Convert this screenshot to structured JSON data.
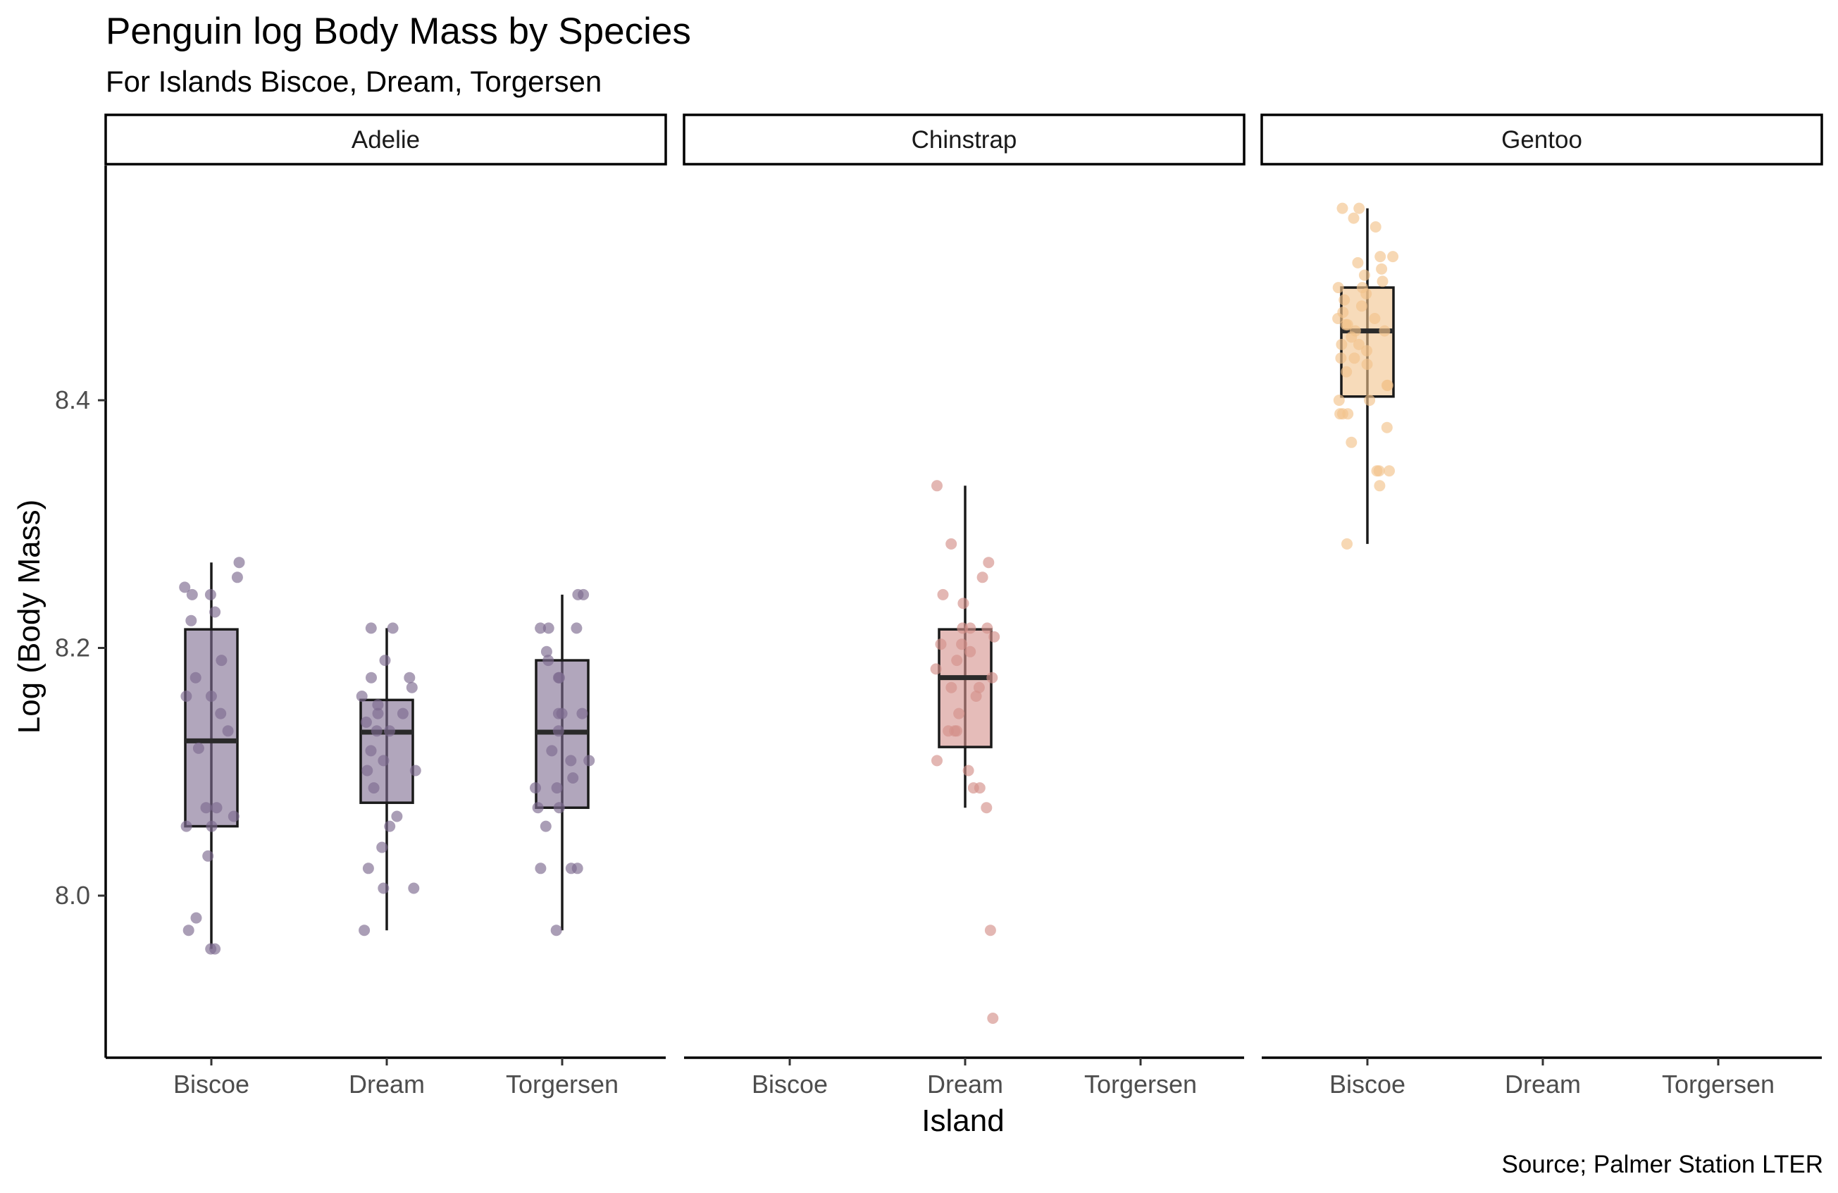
{
  "chart_data": {
    "type": "boxplot",
    "title": "Penguin log Body Mass by Species",
    "subtitle": "For Islands Biscoe, Dream, Torgersen",
    "xlabel": "Island",
    "ylabel": "Log (Body Mass)",
    "caption": "Source; Palmer Station LTER",
    "categories": [
      "Biscoe",
      "Dream",
      "Torgersen"
    ],
    "y_ticks": [
      8.0,
      8.2,
      8.4
    ],
    "y_tick_labels": [
      "8.0",
      "8.2",
      "8.4"
    ],
    "ylim": [
      7.87,
      8.59
    ],
    "grid": false,
    "legend": "none",
    "facets": [
      {
        "name": "Adelie",
        "color": "#7d6a8f",
        "boxes": [
          {
            "island": "Biscoe",
            "min": 7.957,
            "q1": 8.056,
            "median": 8.125,
            "q3": 8.215,
            "max": 8.269,
            "points": [
              7.957,
              7.957,
              7.972,
              7.982,
              8.032,
              8.056,
              8.056,
              8.064,
              8.071,
              8.071,
              8.119,
              8.133,
              8.147,
              8.161,
              8.161,
              8.176,
              8.19,
              8.222,
              8.229,
              8.243,
              8.243,
              8.249,
              8.257,
              8.269
            ]
          },
          {
            "island": "Dream",
            "min": 7.972,
            "q1": 8.075,
            "median": 8.132,
            "q3": 8.158,
            "max": 8.216,
            "points": [
              7.972,
              8.006,
              8.006,
              8.022,
              8.039,
              8.056,
              8.064,
              8.087,
              8.101,
              8.101,
              8.109,
              8.117,
              8.133,
              8.133,
              8.14,
              8.147,
              8.147,
              8.154,
              8.161,
              8.168,
              8.176,
              8.176,
              8.19,
              8.216,
              8.216
            ]
          },
          {
            "island": "Torgersen",
            "min": 7.972,
            "q1": 8.071,
            "median": 8.132,
            "q3": 8.19,
            "max": 8.243,
            "points": [
              7.972,
              8.022,
              8.022,
              8.022,
              8.056,
              8.071,
              8.071,
              8.087,
              8.087,
              8.095,
              8.109,
              8.109,
              8.117,
              8.133,
              8.147,
              8.147,
              8.147,
              8.176,
              8.176,
              8.19,
              8.197,
              8.216,
              8.216,
              8.216,
              8.243,
              8.243
            ]
          }
        ]
      },
      {
        "name": "Chinstrap",
        "color": "#d4908a",
        "boxes": [
          {
            "island": "Dream",
            "min": 8.071,
            "q1": 8.12,
            "median": 8.176,
            "q3": 8.215,
            "max": 8.331,
            "points": [
              7.901,
              7.972,
              8.071,
              8.087,
              8.087,
              8.101,
              8.109,
              8.133,
              8.133,
              8.133,
              8.147,
              8.161,
              8.168,
              8.168,
              8.176,
              8.183,
              8.19,
              8.197,
              8.203,
              8.203,
              8.209,
              8.216,
              8.216,
              8.216,
              8.236,
              8.243,
              8.257,
              8.269,
              8.284,
              8.331
            ]
          }
        ]
      },
      {
        "name": "Gentoo",
        "color": "#f2c38c",
        "boxes": [
          {
            "island": "Biscoe",
            "min": 8.284,
            "q1": 8.403,
            "median": 8.456,
            "q3": 8.491,
            "max": 8.555,
            "points": [
              8.284,
              8.331,
              8.343,
              8.343,
              8.343,
              8.366,
              8.378,
              8.389,
              8.389,
              8.389,
              8.4,
              8.4,
              8.412,
              8.412,
              8.423,
              8.429,
              8.434,
              8.434,
              8.44,
              8.445,
              8.445,
              8.451,
              8.456,
              8.456,
              8.461,
              8.461,
              8.466,
              8.466,
              8.471,
              8.476,
              8.481,
              8.486,
              8.491,
              8.491,
              8.496,
              8.501,
              8.506,
              8.511,
              8.516,
              8.516,
              8.54,
              8.547,
              8.555,
              8.555
            ]
          }
        ]
      }
    ]
  }
}
